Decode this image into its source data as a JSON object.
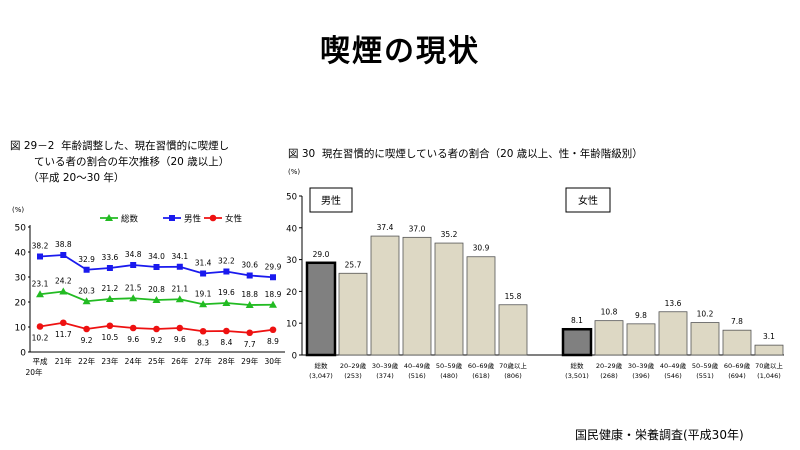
{
  "page": {
    "title": "喫煙の現状",
    "source": "国民健康・栄養調査(平成30年)"
  },
  "chart_data": [
    {
      "type": "line",
      "figure_label": "図 29－2",
      "title_lines": [
        "年齢調整した、現在習慣的に喫煙し",
        "ている者の割合の年次推移（20 歳以上）",
        "（平成 20〜30 年）"
      ],
      "ylabel": "(%)",
      "ylim": [
        0,
        50
      ],
      "yticks": [
        "0",
        "10",
        "20",
        "30",
        "40",
        "50"
      ],
      "x": [
        "平成\n20年",
        "21年",
        "22年",
        "23年",
        "24年",
        "25年",
        "26年",
        "27年",
        "28年",
        "29年",
        "30年"
      ],
      "legend_position": "top-right",
      "series": [
        {
          "name": "総数",
          "color": "#22bb22",
          "marker": "triangle",
          "values": [
            23.1,
            24.2,
            20.3,
            21.2,
            21.5,
            20.8,
            21.1,
            19.1,
            19.6,
            18.8,
            18.9
          ]
        },
        {
          "name": "男性",
          "color": "#1a1aee",
          "marker": "square",
          "values": [
            38.2,
            38.8,
            32.9,
            33.6,
            34.8,
            34.0,
            34.1,
            31.4,
            32.2,
            30.6,
            29.9
          ]
        },
        {
          "name": "女性",
          "color": "#ee1111",
          "marker": "circle",
          "values": [
            10.2,
            11.7,
            9.2,
            10.5,
            9.6,
            9.2,
            9.6,
            8.3,
            8.4,
            7.7,
            8.9
          ]
        }
      ]
    },
    {
      "type": "bar",
      "figure_label": "図 30",
      "title": "現在習慣的に喫煙している者の割合（20 歳以上、性・年齢階級別）",
      "ylabel": "(%)",
      "ylim": [
        0,
        50
      ],
      "yticks": [
        "0",
        "10",
        "20",
        "30",
        "40",
        "50"
      ],
      "bar_color": "#ddd8c4",
      "total_bar_color": "#808080",
      "groups": [
        {
          "name": "男性",
          "categories": [
            {
              "label": "総数",
              "n": "(3,047)"
            },
            {
              "label": "20–29歳",
              "n": "(253)"
            },
            {
              "label": "30–39歳",
              "n": "(374)"
            },
            {
              "label": "40–49歳",
              "n": "(516)"
            },
            {
              "label": "50–59歳",
              "n": "(480)"
            },
            {
              "label": "60–69歳",
              "n": "(618)"
            },
            {
              "label": "70歳以上",
              "n": "(806)"
            }
          ],
          "values": [
            29.0,
            25.7,
            37.4,
            37.0,
            35.2,
            30.9,
            15.8
          ]
        },
        {
          "name": "女性",
          "categories": [
            {
              "label": "総数",
              "n": "(3,501)"
            },
            {
              "label": "20–29歳",
              "n": "(268)"
            },
            {
              "label": "30–39歳",
              "n": "(396)"
            },
            {
              "label": "40–49歳",
              "n": "(546)"
            },
            {
              "label": "50–59歳",
              "n": "(551)"
            },
            {
              "label": "60–69歳",
              "n": "(694)"
            },
            {
              "label": "70歳以上",
              "n": "(1,046)"
            }
          ],
          "values": [
            8.1,
            10.8,
            9.8,
            13.6,
            10.2,
            7.8,
            3.1
          ]
        }
      ]
    }
  ]
}
